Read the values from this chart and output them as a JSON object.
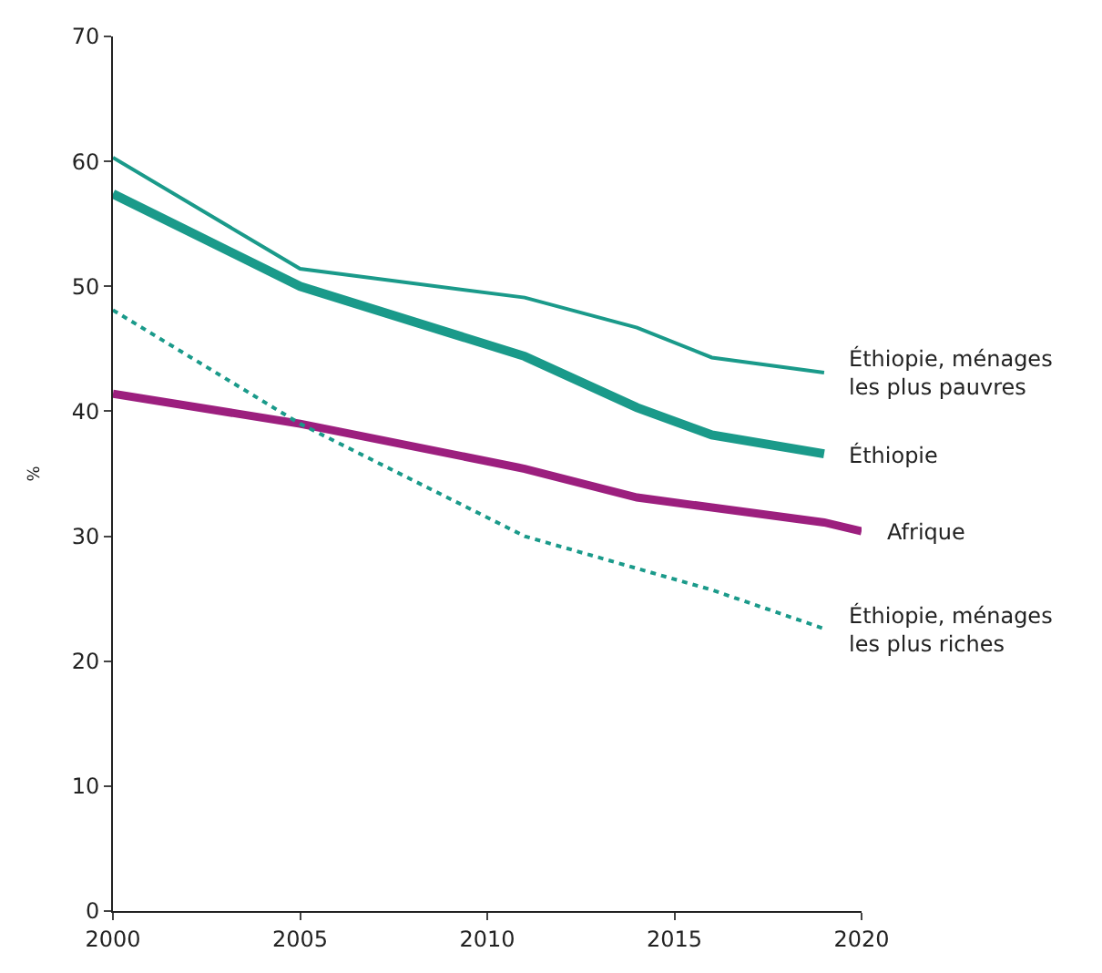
{
  "chart_data": {
    "type": "line",
    "ylabel": "%",
    "xlim": [
      2000,
      2020
    ],
    "ylim": [
      0,
      70
    ],
    "xticks": [
      2000,
      2005,
      2010,
      2015,
      2020
    ],
    "yticks": [
      0,
      10,
      20,
      30,
      40,
      50,
      60,
      70
    ],
    "legend": false,
    "marker": "none",
    "series": [
      {
        "name": "Éthiopie, ménages\nles plus pauvres",
        "color": "#1a9a8a",
        "line_style": "solid",
        "x": [
          2000,
          2005,
          2011,
          2014,
          2016,
          2019
        ],
        "values": [
          60.3,
          51.4,
          49.1,
          46.7,
          44.3,
          43.1
        ]
      },
      {
        "name": "Éthiopie",
        "color": "#1a9a8a",
        "line_style": "solid",
        "x": [
          2000,
          2005,
          2011,
          2014,
          2016,
          2019
        ],
        "values": [
          57.4,
          50.0,
          44.4,
          40.3,
          38.1,
          36.6
        ]
      },
      {
        "name": "Afrique",
        "color": "#9c1f7e",
        "line_style": "solid",
        "x": [
          2000,
          2005,
          2011,
          2014,
          2016,
          2019,
          2020
        ],
        "values": [
          41.4,
          39.0,
          35.4,
          33.1,
          32.3,
          31.1,
          30.4
        ]
      },
      {
        "name": "Éthiopie, ménages\nles plus riches",
        "color": "#1a9a8a",
        "line_style": "dotted",
        "x": [
          2000,
          2005,
          2011,
          2016,
          2019
        ],
        "values": [
          48.1,
          39.0,
          30.0,
          25.7,
          22.6
        ]
      }
    ]
  }
}
